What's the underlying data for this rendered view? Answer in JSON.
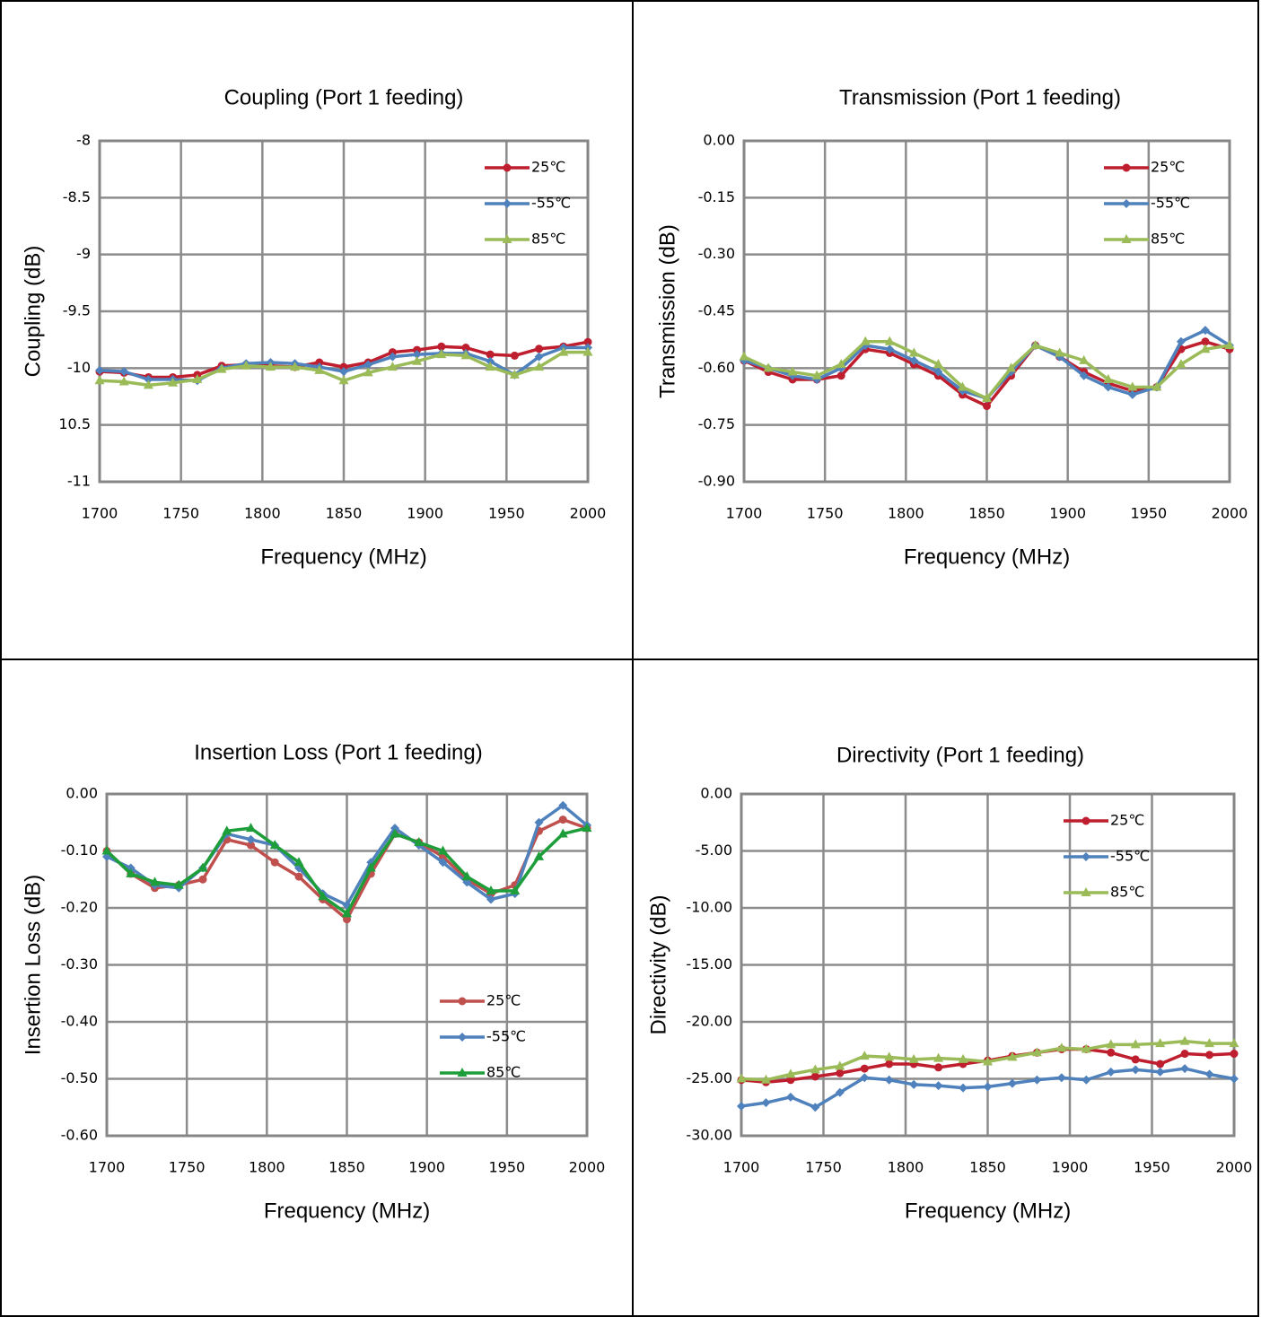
{
  "chart_data": [
    {
      "type": "line",
      "title": "Coupling (Port 1 feeding)",
      "xlabel": "Frequency (MHz)",
      "ylabel": "Coupling (dB)",
      "x": [
        1700,
        1715,
        1730,
        1745,
        1760,
        1775,
        1790,
        1805,
        1820,
        1835,
        1850,
        1865,
        1880,
        1895,
        1910,
        1925,
        1940,
        1955,
        1970,
        1985,
        2000
      ],
      "xlim": [
        1700,
        2000
      ],
      "xticks": [
        1700,
        1750,
        1800,
        1850,
        1900,
        1950,
        2000
      ],
      "ylim": [
        -11,
        -8
      ],
      "yticks": [
        -11,
        {
          "value": -10.5,
          "label": "10.5"
        },
        -10,
        -9.5,
        -9,
        -8.5,
        -8
      ],
      "grid": true,
      "legend_position": "upper right",
      "series": [
        {
          "name": "25℃",
          "color": "#be1e2d",
          "marker": "circle",
          "values": [
            -10.03,
            -10.04,
            -10.08,
            -10.08,
            -10.06,
            -9.98,
            -9.97,
            -9.98,
            -9.99,
            -9.95,
            -9.99,
            -9.95,
            -9.86,
            -9.84,
            -9.81,
            -9.82,
            -9.88,
            -9.89,
            -9.83,
            -9.81,
            -9.77
          ]
        },
        {
          "name": "-55℃",
          "color": "#4f81bd",
          "marker": "diamond",
          "values": [
            -10.02,
            -10.03,
            -10.1,
            -10.1,
            -10.11,
            -10.0,
            -9.96,
            -9.95,
            -9.96,
            -9.99,
            -10.03,
            -9.97,
            -9.9,
            -9.88,
            -9.87,
            -9.87,
            -9.94,
            -10.06,
            -9.9,
            -9.82,
            -9.82
          ]
        },
        {
          "name": "85℃",
          "color": "#9bbb59",
          "marker": "triangle",
          "values": [
            -10.11,
            -10.12,
            -10.15,
            -10.13,
            -10.1,
            -10.01,
            -9.98,
            -9.99,
            -9.99,
            -10.02,
            -10.11,
            -10.04,
            -9.99,
            -9.94,
            -9.88,
            -9.89,
            -9.99,
            -10.06,
            -9.99,
            -9.86,
            -9.86
          ]
        }
      ]
    },
    {
      "type": "line",
      "title": "Transmission (Port 1 feeding)",
      "xlabel": "Frequency (MHz)",
      "ylabel": "Transmission (dB)",
      "x": [
        1700,
        1715,
        1730,
        1745,
        1760,
        1775,
        1790,
        1805,
        1820,
        1835,
        1850,
        1865,
        1880,
        1895,
        1910,
        1925,
        1940,
        1955,
        1970,
        1985,
        2000
      ],
      "xlim": [
        1700,
        2000
      ],
      "xticks": [
        1700,
        1750,
        1800,
        1850,
        1900,
        1950,
        2000
      ],
      "ylim": [
        -0.9,
        0
      ],
      "yticks": [
        {
          "value": -0.9,
          "label": "-0.90"
        },
        {
          "value": -0.75,
          "label": "-0.75"
        },
        {
          "value": -0.6,
          "label": "-0.60"
        },
        {
          "value": -0.45,
          "label": "-0.45"
        },
        {
          "value": -0.3,
          "label": "-0.30"
        },
        {
          "value": -0.15,
          "label": "-0.15"
        },
        {
          "value": 0,
          "label": "0.00"
        }
      ],
      "grid": true,
      "legend_position": "upper right",
      "series": [
        {
          "name": "25℃",
          "color": "#be1e2d",
          "marker": "circle",
          "values": [
            -0.58,
            -0.61,
            -0.63,
            -0.63,
            -0.62,
            -0.55,
            -0.56,
            -0.59,
            -0.62,
            -0.67,
            -0.7,
            -0.62,
            -0.54,
            -0.57,
            -0.61,
            -0.64,
            -0.66,
            -0.65,
            -0.55,
            -0.53,
            -0.55
          ]
        },
        {
          "name": "-55℃",
          "color": "#4f81bd",
          "marker": "diamond",
          "values": [
            -0.58,
            -0.6,
            -0.62,
            -0.63,
            -0.6,
            -0.54,
            -0.55,
            -0.58,
            -0.61,
            -0.66,
            -0.68,
            -0.61,
            -0.54,
            -0.57,
            -0.62,
            -0.65,
            -0.67,
            -0.65,
            -0.53,
            -0.5,
            -0.54
          ]
        },
        {
          "name": "85℃",
          "color": "#9bbb59",
          "marker": "triangle",
          "values": [
            -0.57,
            -0.6,
            -0.61,
            -0.62,
            -0.59,
            -0.53,
            -0.53,
            -0.56,
            -0.59,
            -0.65,
            -0.68,
            -0.6,
            -0.54,
            -0.56,
            -0.58,
            -0.63,
            -0.65,
            -0.65,
            -0.59,
            -0.55,
            -0.54
          ]
        }
      ]
    },
    {
      "type": "line",
      "title": "Insertion Loss (Port 1 feeding)",
      "xlabel": "Frequency (MHz)",
      "ylabel": "Insertion Loss (dB)",
      "x": [
        1700,
        1715,
        1730,
        1745,
        1760,
        1775,
        1790,
        1805,
        1820,
        1835,
        1850,
        1865,
        1880,
        1895,
        1910,
        1925,
        1940,
        1955,
        1970,
        1985,
        2000
      ],
      "xlim": [
        1700,
        2000
      ],
      "xticks": [
        1700,
        1750,
        1800,
        1850,
        1900,
        1950,
        2000
      ],
      "ylim": [
        -0.6,
        0
      ],
      "yticks": [
        {
          "value": -0.6,
          "label": "-0.60"
        },
        {
          "value": -0.5,
          "label": "-0.50"
        },
        {
          "value": -0.4,
          "label": "-0.40"
        },
        {
          "value": -0.3,
          "label": "-0.30"
        },
        {
          "value": -0.2,
          "label": "-0.20"
        },
        {
          "value": -0.1,
          "label": "-0.10"
        },
        {
          "value": 0,
          "label": "0.00"
        }
      ],
      "grid": true,
      "legend_position": "lower right",
      "series": [
        {
          "name": "25℃",
          "color": "#c0504d",
          "marker": "circle",
          "values": [
            -0.1,
            -0.14,
            -0.165,
            -0.16,
            -0.15,
            -0.08,
            -0.09,
            -0.12,
            -0.145,
            -0.185,
            -0.22,
            -0.14,
            -0.07,
            -0.085,
            -0.11,
            -0.15,
            -0.175,
            -0.16,
            -0.065,
            -0.045,
            -0.06
          ]
        },
        {
          "name": "-55℃",
          "color": "#4f81bd",
          "marker": "diamond",
          "values": [
            -0.11,
            -0.13,
            -0.16,
            -0.165,
            -0.13,
            -0.07,
            -0.08,
            -0.09,
            -0.13,
            -0.175,
            -0.195,
            -0.12,
            -0.06,
            -0.09,
            -0.12,
            -0.155,
            -0.185,
            -0.175,
            -0.05,
            -0.02,
            -0.055
          ]
        },
        {
          "name": "85℃",
          "color": "#1e9e3a",
          "marker": "triangle",
          "values": [
            -0.1,
            -0.14,
            -0.155,
            -0.16,
            -0.13,
            -0.065,
            -0.06,
            -0.09,
            -0.12,
            -0.18,
            -0.21,
            -0.13,
            -0.07,
            -0.085,
            -0.1,
            -0.145,
            -0.17,
            -0.17,
            -0.11,
            -0.07,
            -0.06
          ]
        }
      ]
    },
    {
      "type": "line",
      "title": "Directivity (Port 1 feeding)",
      "xlabel": "Frequency (MHz)",
      "ylabel": "Directivity (dB)",
      "x": [
        1700,
        1715,
        1730,
        1745,
        1760,
        1775,
        1790,
        1805,
        1820,
        1835,
        1850,
        1865,
        1880,
        1895,
        1910,
        1925,
        1940,
        1955,
        1970,
        1985,
        2000
      ],
      "xlim": [
        1700,
        2000
      ],
      "xticks": [
        1700,
        1750,
        1800,
        1850,
        1900,
        1950,
        2000
      ],
      "ylim": [
        -30,
        0
      ],
      "yticks": [
        {
          "value": -30,
          "label": "-30.00"
        },
        {
          "value": -25,
          "label": "-25.00"
        },
        {
          "value": -20,
          "label": "-20.00"
        },
        {
          "value": -15,
          "label": "-15.00"
        },
        {
          "value": -10,
          "label": "-10.00"
        },
        {
          "value": -5,
          "label": "-5.00"
        },
        {
          "value": 0,
          "label": "0.00"
        }
      ],
      "grid": true,
      "legend_position": "upper right",
      "series": [
        {
          "name": "25℃",
          "color": "#be1e2d",
          "marker": "circle",
          "values": [
            -25.1,
            -25.3,
            -25.1,
            -24.8,
            -24.5,
            -24.1,
            -23.7,
            -23.7,
            -24.0,
            -23.7,
            -23.4,
            -23.0,
            -22.7,
            -22.4,
            -22.4,
            -22.7,
            -23.3,
            -23.7,
            -22.8,
            -22.9,
            -22.8
          ]
        },
        {
          "name": "-55℃",
          "color": "#4f81bd",
          "marker": "diamond",
          "values": [
            -27.4,
            -27.1,
            -26.6,
            -27.5,
            -26.2,
            -24.9,
            -25.1,
            -25.5,
            -25.6,
            -25.8,
            -25.7,
            -25.4,
            -25.1,
            -24.9,
            -25.1,
            -24.4,
            -24.2,
            -24.4,
            -24.1,
            -24.6,
            -25.0
          ]
        },
        {
          "name": "85℃",
          "color": "#9bbb59",
          "marker": "triangle",
          "values": [
            -25.0,
            -25.1,
            -24.6,
            -24.2,
            -23.9,
            -23.0,
            -23.1,
            -23.3,
            -23.2,
            -23.3,
            -23.5,
            -23.1,
            -22.7,
            -22.3,
            -22.4,
            -22.0,
            -22.0,
            -21.9,
            -21.7,
            -21.9,
            -21.9
          ]
        }
      ]
    }
  ]
}
